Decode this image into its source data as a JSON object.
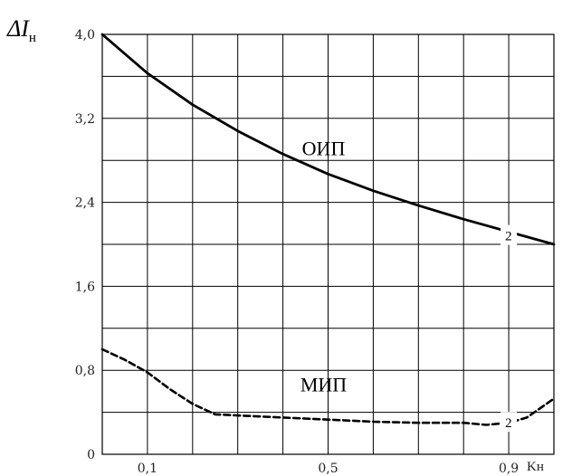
{
  "chart_data": {
    "type": "line",
    "ylabel_main": "ΔI",
    "ylabel_sub": "н",
    "xlabel": "Kн",
    "xlim": [
      0,
      1.0
    ],
    "ylim": [
      0,
      4.0
    ],
    "x_ticks": [
      "0,1",
      "0,5",
      "0,9"
    ],
    "x_tick_values": [
      0.1,
      0.5,
      0.9
    ],
    "y_ticks": [
      "0",
      "0,8",
      "1,6",
      "2,4",
      "3,2",
      "4,0"
    ],
    "y_tick_values": [
      0,
      0.8,
      1.6,
      2.4,
      3.2,
      4.0
    ],
    "grid": true,
    "series": [
      {
        "name": "ОИП",
        "style": "solid",
        "color": "#000000",
        "x": [
          0,
          0.1,
          0.2,
          0.3,
          0.4,
          0.5,
          0.6,
          0.7,
          0.8,
          0.9,
          1.0
        ],
        "y": [
          4.0,
          3.63,
          3.33,
          3.08,
          2.86,
          2.67,
          2.51,
          2.37,
          2.24,
          2.12,
          2.0
        ]
      },
      {
        "name": "МИП",
        "style": "dashed",
        "color": "#000000",
        "x": [
          0,
          0.05,
          0.1,
          0.15,
          0.2,
          0.25,
          0.3,
          0.4,
          0.5,
          0.6,
          0.7,
          0.8,
          0.85,
          0.9,
          0.94,
          0.97,
          1.0
        ],
        "y": [
          1.0,
          0.9,
          0.78,
          0.62,
          0.48,
          0.38,
          0.37,
          0.35,
          0.33,
          0.31,
          0.3,
          0.3,
          0.28,
          0.3,
          0.35,
          0.44,
          0.53
        ]
      }
    ],
    "annotations": [
      {
        "text": "ОИП",
        "x": 0.49,
        "y": 2.85
      },
      {
        "text": "МИП",
        "x": 0.49,
        "y": 0.6
      },
      {
        "text": "2",
        "x": 0.9,
        "y": 2.08
      },
      {
        "text": "2",
        "x": 0.9,
        "y": 0.3
      }
    ]
  }
}
